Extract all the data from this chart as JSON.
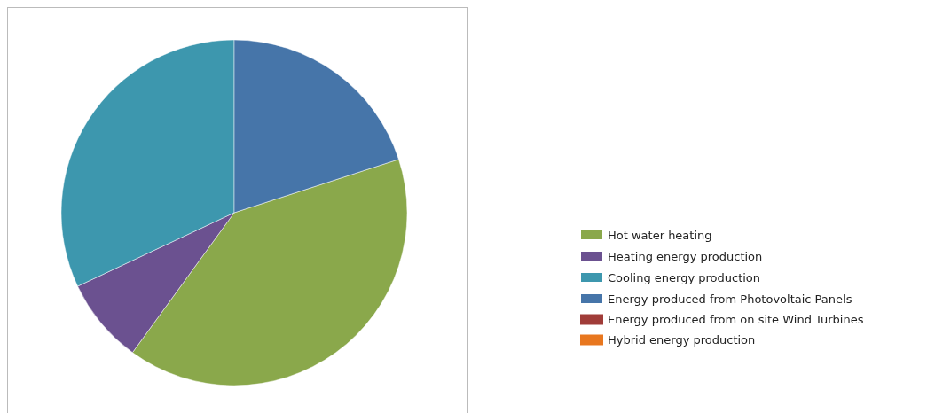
{
  "chart_data": {
    "type": "pie",
    "categories": [
      "Hot water heating",
      "Heating energy production",
      "Cooling energy production",
      "Energy produced from Photovoltaic Panels",
      "Energy produced from on site Wind Turbines",
      "Hybrid energy production"
    ],
    "values": [
      40,
      8,
      32,
      20,
      0,
      0
    ],
    "colors": [
      "#8aa84b",
      "#6b5190",
      "#3d97ae",
      "#4675a9",
      "#a03c38",
      "#e8771f"
    ],
    "legend": "right"
  }
}
